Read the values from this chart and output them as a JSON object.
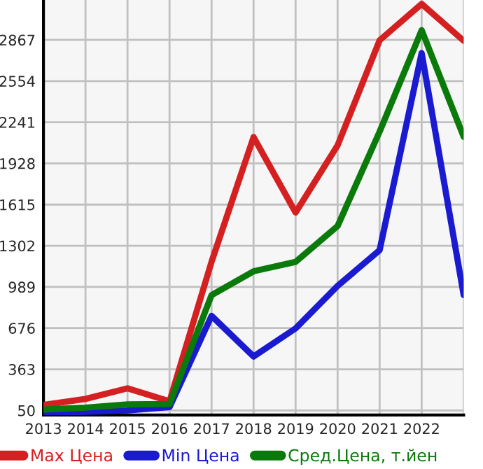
{
  "chart_data": {
    "type": "line",
    "x": [
      2013,
      2014,
      2015,
      2016,
      2017,
      2018,
      2019,
      2020,
      2021,
      2022,
      2023
    ],
    "series": [
      {
        "name": "Max Цена",
        "color": "#d42020",
        "values": [
          92,
          138,
          218,
          120,
          1180,
          2128,
          1555,
          2065,
          2864,
          3140,
          2860
        ]
      },
      {
        "name": "Min Цена",
        "color": "#1a1ad0",
        "values": [
          25,
          40,
          50,
          75,
          769,
          460,
          674,
          997,
          1269,
          2767,
          927
        ]
      },
      {
        "name": "Сред.Цена, т.йен",
        "color": "#0a7a0a",
        "values": [
          57,
          71,
          96,
          99,
          927,
          1108,
          1179,
          1452,
          2170,
          2940,
          2130
        ]
      }
    ],
    "xlim": [
      2013,
      2023
    ],
    "ylim": [
      15,
      3170
    ],
    "xticks": [
      2013,
      2014,
      2015,
      2016,
      2017,
      2018,
      2019,
      2020,
      2021,
      2022,
      {
        "value": 2023,
        "label": null
      }
    ],
    "yticks": [
      50,
      363,
      676,
      989,
      1302,
      1615,
      1928,
      2241,
      2554,
      2867
    ],
    "grid": true,
    "legend": "bottom",
    "marker": "none",
    "line_style": "solid"
  }
}
